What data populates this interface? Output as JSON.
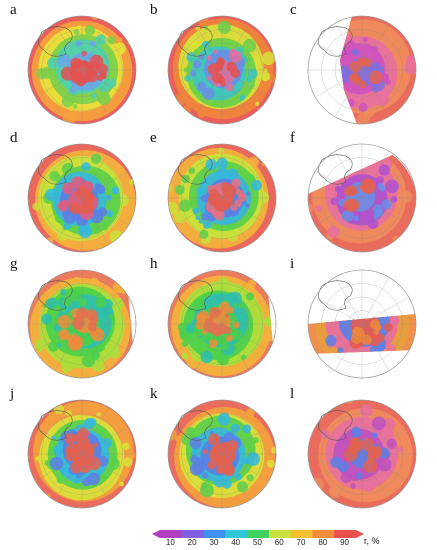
{
  "panels": [
    {
      "label": "a",
      "pattern": "rings",
      "ring_colors": [
        "#e8504e",
        "#f4a23c",
        "#e8e23a",
        "#7ad04b",
        "#4fd0b0",
        "#6aa8e8",
        "#e8504e"
      ],
      "coverage": "full"
    },
    {
      "label": "b",
      "pattern": "rings",
      "ring_colors": [
        "#e8504e",
        "#f0863c",
        "#d8e23a",
        "#6ad04b",
        "#3cc4c4",
        "#6a8ee8",
        "#e070a0"
      ],
      "coverage": "full"
    },
    {
      "label": "c",
      "pattern": "partial",
      "ring_colors": [
        "#e8604e",
        "#f08c5c",
        "#e870a0",
        "#d050c0",
        "#8070e0"
      ],
      "coverage": "east"
    },
    {
      "label": "d",
      "pattern": "rings",
      "ring_colors": [
        "#e85a4e",
        "#f4b23c",
        "#c8e23a",
        "#5ad04b",
        "#34b8e0",
        "#5a80e8",
        "#e85a7a"
      ],
      "coverage": "full"
    },
    {
      "label": "e",
      "pattern": "rings",
      "ring_colors": [
        "#e85a4e",
        "#f4b23c",
        "#c8e23a",
        "#5ad04b",
        "#34b8e0",
        "#5a80e8",
        "#e87080"
      ],
      "coverage": "full"
    },
    {
      "label": "f",
      "pattern": "partial",
      "ring_colors": [
        "#e8604e",
        "#f08c5c",
        "#e870a0",
        "#b050d0",
        "#6a8ee8"
      ],
      "coverage": "south"
    },
    {
      "label": "g",
      "pattern": "rings",
      "ring_colors": [
        "#e8704e",
        "#f4b23c",
        "#a8e03a",
        "#4ad04b",
        "#2cc0b0",
        "#4ad04b",
        "#f08c3c"
      ],
      "coverage": "southwest"
    },
    {
      "label": "h",
      "pattern": "rings",
      "ring_colors": [
        "#e8704e",
        "#f4b23c",
        "#a8e03a",
        "#4ad04b",
        "#2cc0b0",
        "#4ad04b",
        "#f08c3c"
      ],
      "coverage": "southwest"
    },
    {
      "label": "i",
      "pattern": "partial",
      "ring_colors": [
        "#f0863c",
        "#e8a03c",
        "#e870a0",
        "#5a80e8",
        "#e85a4e"
      ],
      "coverage": "band"
    },
    {
      "label": "j",
      "pattern": "rings",
      "ring_colors": [
        "#e8604e",
        "#f4a23c",
        "#d8e23a",
        "#5ad04b",
        "#34b8e0",
        "#5a80e8",
        "#e8604e"
      ],
      "coverage": "full"
    },
    {
      "label": "k",
      "pattern": "rings",
      "ring_colors": [
        "#e8604e",
        "#f4a23c",
        "#d8e23a",
        "#5ad04b",
        "#34b8e0",
        "#5a80e8",
        "#e8604e"
      ],
      "coverage": "full"
    },
    {
      "label": "l",
      "pattern": "partial",
      "ring_colors": [
        "#e8604e",
        "#f08c5c",
        "#e870a0",
        "#c050c0",
        "#5a80e8"
      ],
      "coverage": "full"
    }
  ],
  "colorbar": {
    "ticks": [
      "10",
      "20",
      "30",
      "40",
      "50",
      "60",
      "70",
      "80",
      "90"
    ],
    "colors": [
      "#b040c0",
      "#8060e0",
      "#4090f0",
      "#30c8d8",
      "#40d060",
      "#c8e040",
      "#f4c030",
      "#f08c3c",
      "#e8504e"
    ],
    "unit": "r, %"
  }
}
